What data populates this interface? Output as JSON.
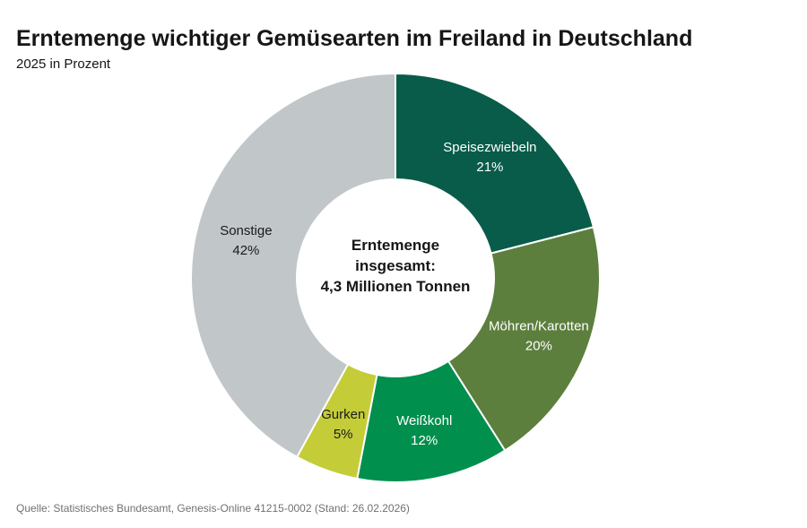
{
  "header": {
    "title": "Erntemenge wichtiger Gemüsearten im Freiland in Deutschland",
    "subtitle": "2025 in Prozent"
  },
  "chart_data": {
    "type": "pie",
    "donut": true,
    "title": "Erntemenge wichtiger Gemüsearten im Freiland in Deutschland",
    "subtitle": "2025 in Prozent",
    "unit": "%",
    "direction": "clockwise",
    "start_angle_deg": 0,
    "legend_position": "none",
    "center_label": {
      "lines": [
        "Erntemenge",
        "insgesamt:",
        "4,3 Millionen Tonnen"
      ]
    },
    "slices": [
      {
        "label": "Speisezwiebeln",
        "value": 21,
        "color": "#085c49",
        "text_color": "#ffffff"
      },
      {
        "label": "Möhren/Karotten",
        "value": 20,
        "color": "#5c7f3d",
        "text_color": "#ffffff"
      },
      {
        "label": "Weißkohl",
        "value": 12,
        "color": "#008f4d",
        "text_color": "#ffffff"
      },
      {
        "label": "Gurken",
        "value": 5,
        "color": "#c4cc38",
        "text_color": "#1a1a1a"
      },
      {
        "label": "Sonstige",
        "value": 42,
        "color": "#c1c6c8",
        "text_color": "#1a1a1a"
      }
    ]
  },
  "footer": {
    "source": "Quelle: Statistisches Bundesamt, Genesis-Online 41215-0002 (Stand: 26.02.2026)"
  }
}
